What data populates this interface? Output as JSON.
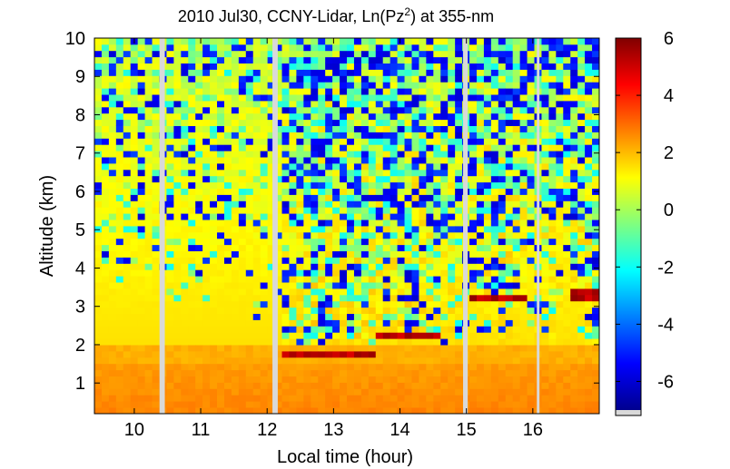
{
  "chart_data": {
    "type": "heatmap",
    "title_prefix": "2010 Jul30, CCNY-Lidar, Ln(Pz",
    "title_superscript": "2",
    "title_suffix": ") at 355-nm",
    "xlabel": "Local time (hour)",
    "ylabel": "Altitude (km)",
    "xlim": [
      9.4,
      17.0
    ],
    "ylim": [
      0.2,
      10.0
    ],
    "x_ticks": [
      "10",
      "11",
      "12",
      "13",
      "14",
      "15",
      "16"
    ],
    "y_ticks": [
      "1",
      "2",
      "3",
      "4",
      "5",
      "6",
      "7",
      "8",
      "9",
      "10"
    ],
    "colorbar": {
      "range": [
        -7,
        6
      ],
      "ticks": [
        "6",
        "4",
        "2",
        "0",
        "-2",
        "-4",
        "-6"
      ],
      "colormap": "jet"
    },
    "data_gaps_hours": [
      [
        10.38,
        10.46
      ],
      [
        12.08,
        12.16
      ],
      [
        14.95,
        15.02
      ],
      [
        16.06,
        16.1
      ]
    ],
    "cloud_layer_segments": [
      {
        "t_start": 12.2,
        "t_end": 13.6,
        "altitude_km": 1.8
      },
      {
        "t_start": 13.6,
        "t_end": 14.6,
        "altitude_km": 2.3
      },
      {
        "t_start": 15.1,
        "t_end": 15.9,
        "altitude_km": 3.2
      },
      {
        "t_start": 16.6,
        "t_end": 17.0,
        "altitude_km": 3.3
      }
    ],
    "gap_color": "#d9d9d9"
  }
}
